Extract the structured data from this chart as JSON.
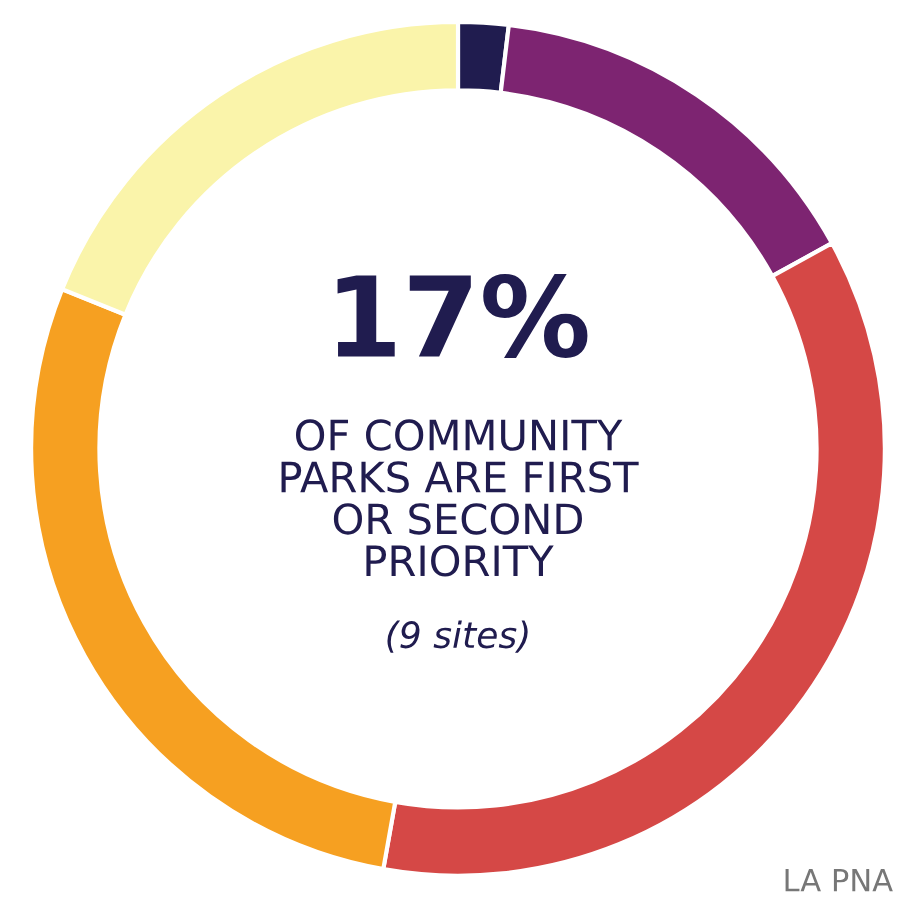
{
  "chart_data": {
    "type": "donut",
    "categories": [
      null,
      null,
      null,
      null,
      null
    ],
    "values": [
      1.9,
      15.1,
      35.8,
      28.3,
      18.9
    ],
    "colors": [
      "#201c4f",
      "#7d2471",
      "#d54846",
      "#f6a021",
      "#faf4aa"
    ],
    "legend": false,
    "annotations": [
      "17%",
      "OF COMMUNITY\nPARKS ARE FIRST\nOR SECOND\nPRIORITY",
      "(9 sites)",
      "LA PNA"
    ]
  }
}
